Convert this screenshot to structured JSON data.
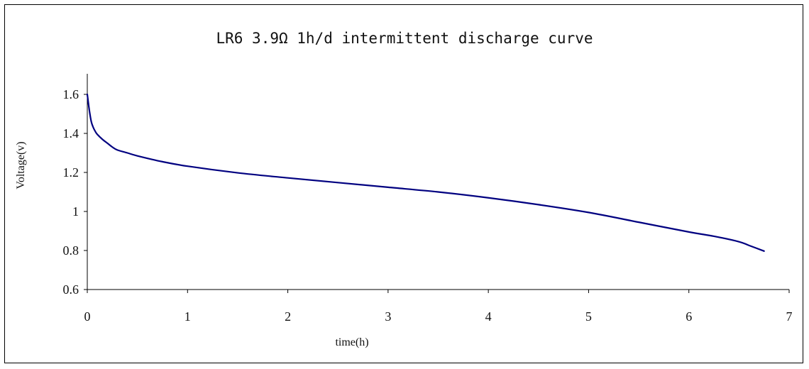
{
  "chart_data": {
    "type": "line",
    "title": "LR6 3.9Ω 1h/d intermittent discharge curve",
    "xlabel": "time(h)",
    "ylabel": "Voltage(v)",
    "xlim": [
      0,
      7
    ],
    "ylim": [
      0.6,
      1.6
    ],
    "xticks": [
      "0",
      "1",
      "2",
      "3",
      "4",
      "5",
      "6",
      "7"
    ],
    "yticks": [
      "0.6",
      "0.8",
      "1",
      "1.2",
      "1.4",
      "1.6"
    ],
    "grid": false,
    "legend": "none",
    "line_color": "#000080",
    "series": [
      {
        "x": [
          0,
          0.02,
          0.04,
          0.06,
          0.08,
          0.1,
          0.15,
          0.2,
          0.25,
          0.3,
          0.4,
          0.5,
          0.75,
          1.0,
          1.5,
          2.0,
          2.5,
          3.0,
          3.5,
          4.0,
          4.5,
          5.0,
          5.5,
          6.0,
          6.25,
          6.5,
          6.6,
          6.75
        ],
        "y": [
          1.6,
          1.52,
          1.46,
          1.43,
          1.41,
          1.395,
          1.37,
          1.35,
          1.33,
          1.315,
          1.3,
          1.285,
          1.255,
          1.232,
          1.198,
          1.172,
          1.148,
          1.124,
          1.1,
          1.07,
          1.035,
          0.995,
          0.945,
          0.895,
          0.873,
          0.845,
          0.826,
          0.797
        ]
      }
    ]
  }
}
